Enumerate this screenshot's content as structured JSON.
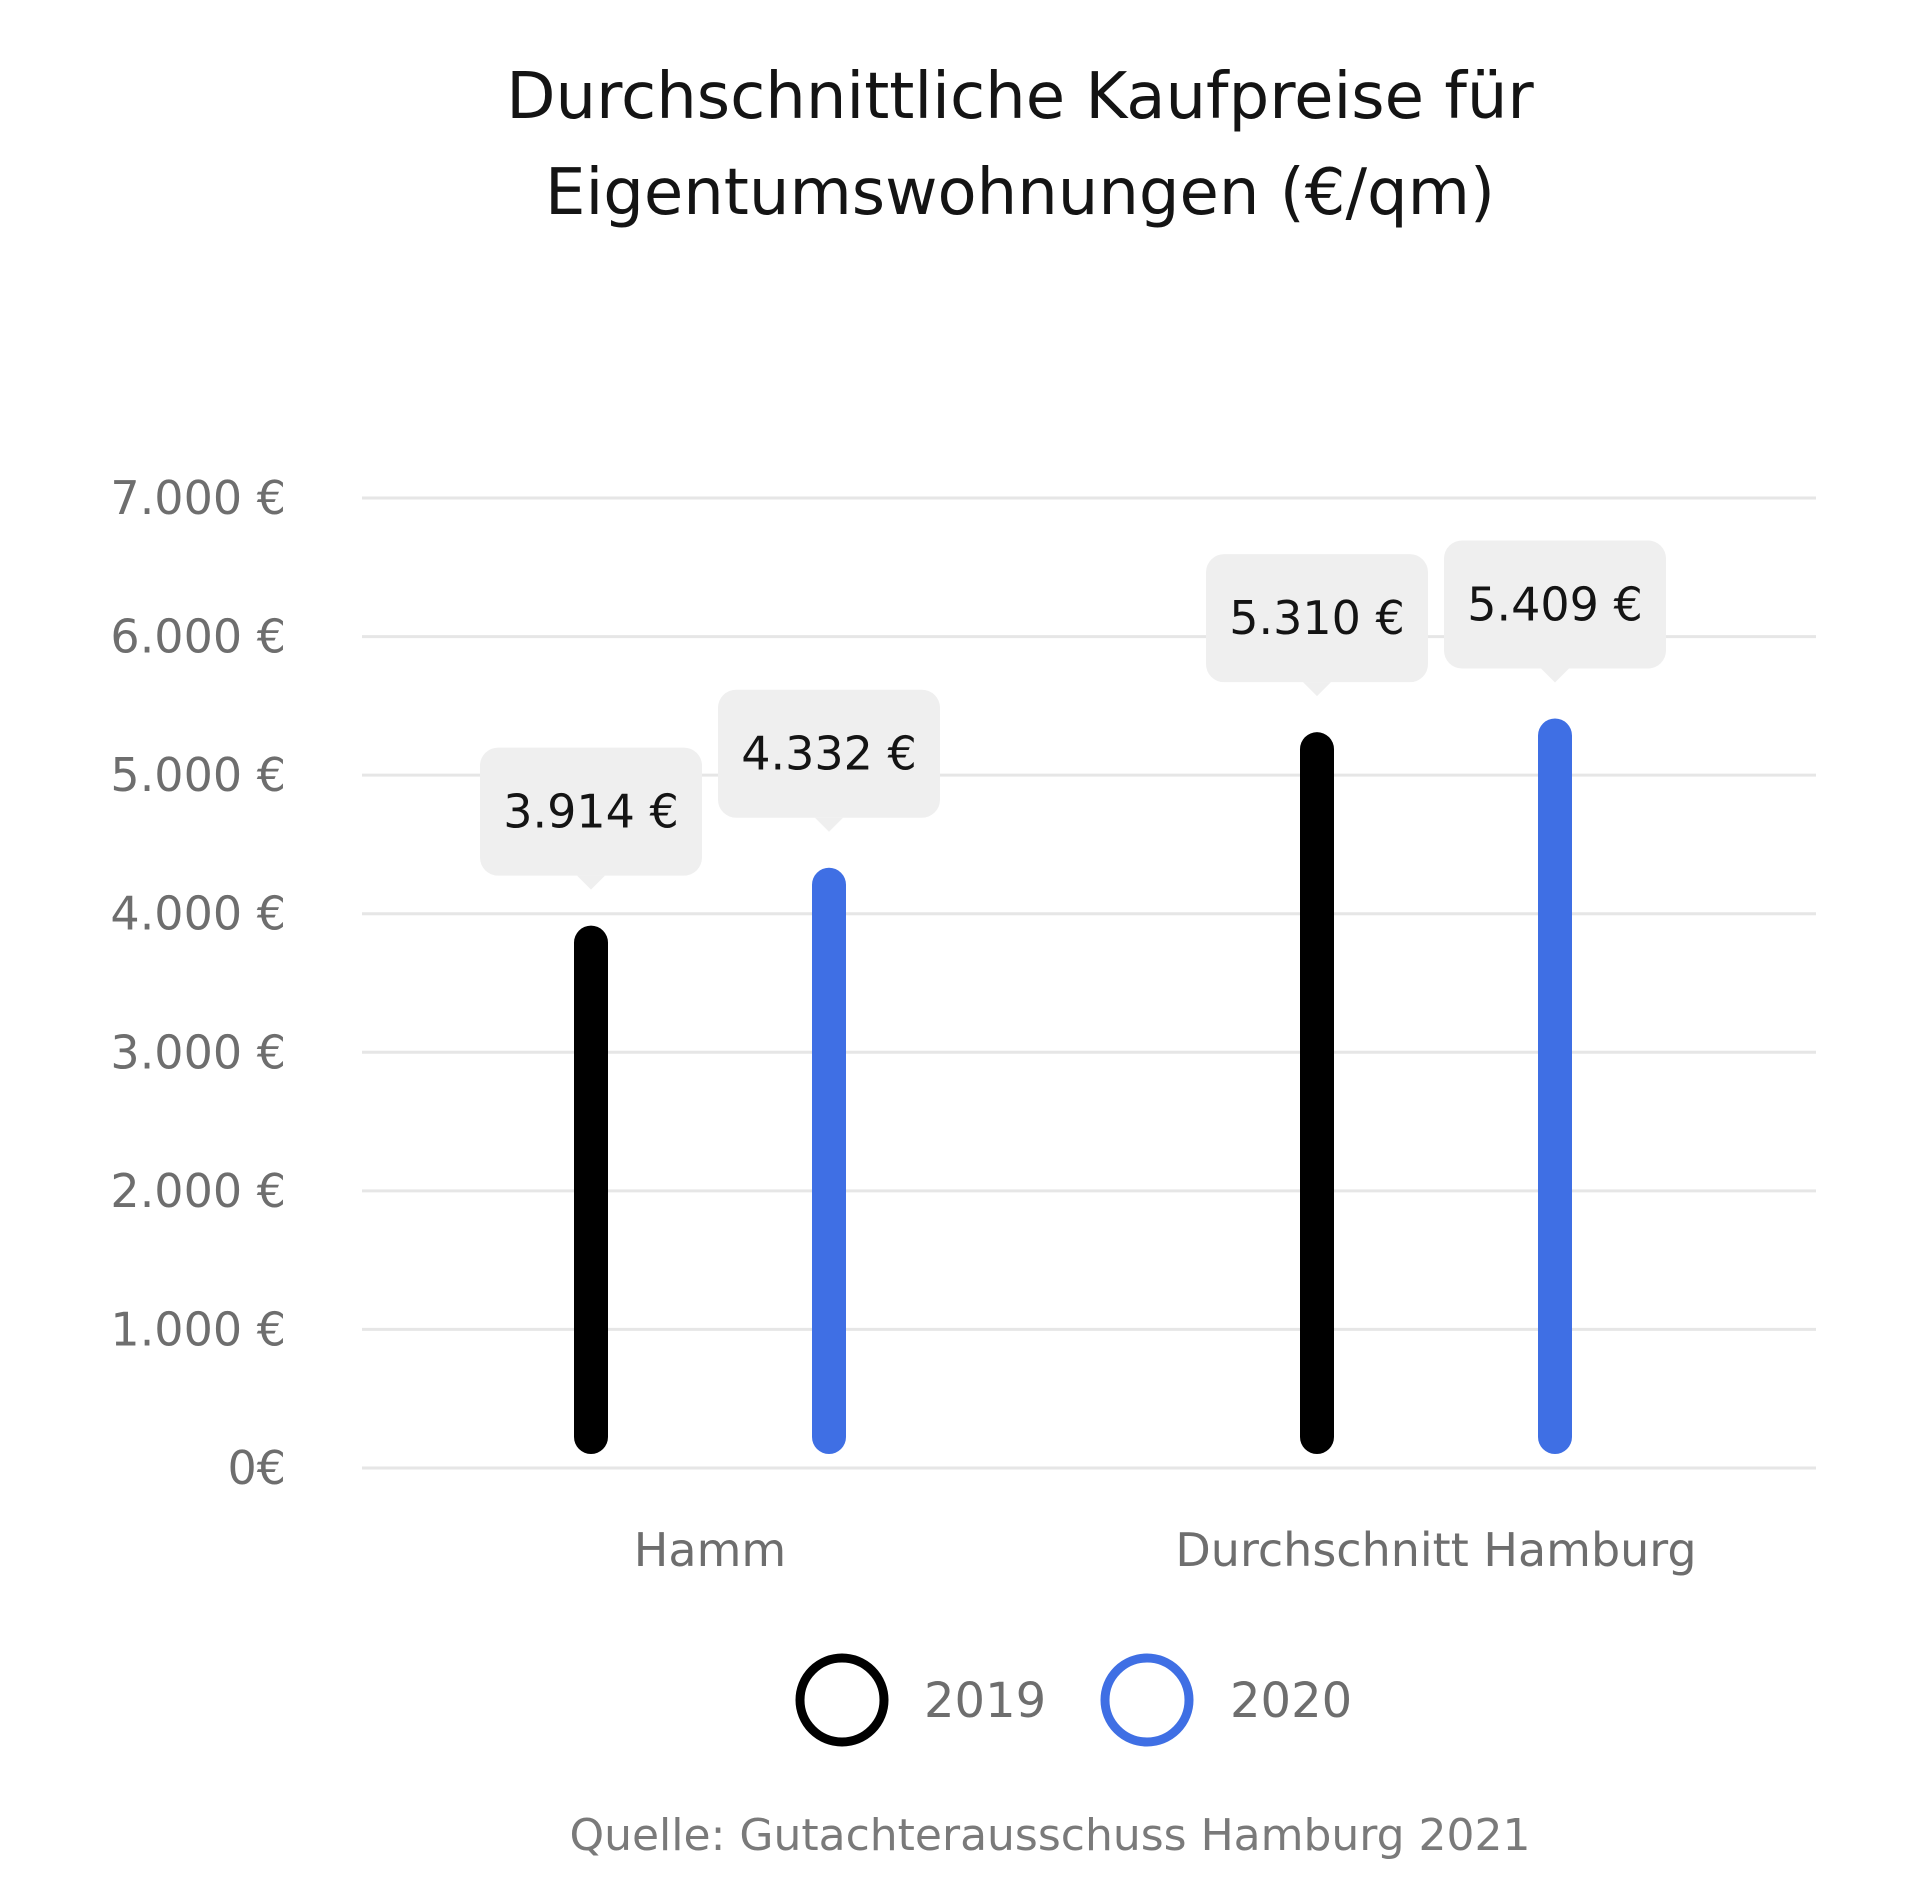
{
  "chart_data": {
    "type": "bar",
    "title": "Durchschnittliche Kaufpreise für Eigentumswohnungen (€/qm)",
    "title_lines": [
      "Durchschnittliche Kaufpreise für",
      "Eigentumswohnungen (€/qm)"
    ],
    "categories": [
      "Hamm",
      "Durchschnitt Hamburg"
    ],
    "series": [
      {
        "name": "2019",
        "color": "#000000",
        "values": [
          3914,
          5310
        ],
        "labels": [
          "3.914 €",
          "5.310 €"
        ]
      },
      {
        "name": "2020",
        "color": "#3f6fe4",
        "values": [
          4332,
          5409
        ],
        "labels": [
          "4.332 €",
          "5.409 €"
        ]
      }
    ],
    "ylim": [
      0,
      7000
    ],
    "yticks": [
      0,
      1000,
      2000,
      3000,
      4000,
      5000,
      6000,
      7000
    ],
    "ytick_labels": [
      "0€",
      "1.000 €",
      "2.000 €",
      "3.000 €",
      "4.000 €",
      "5.000 €",
      "6.000 €",
      "7.000 €"
    ],
    "grid": true,
    "legend_position": "bottom-center",
    "xlabel": "",
    "ylabel": ""
  },
  "source_text": "Quelle: Gutachterausschuss Hamburg 2021"
}
